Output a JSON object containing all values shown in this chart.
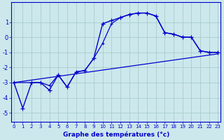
{
  "bg_color": "#cce8ec",
  "line_color": "#0000cc",
  "grid_color": "#aacccc",
  "xlim": [
    -0.3,
    23.3
  ],
  "ylim": [
    -5.6,
    2.3
  ],
  "xticks": [
    0,
    1,
    2,
    3,
    4,
    5,
    6,
    7,
    8,
    9,
    10,
    11,
    12,
    13,
    14,
    15,
    16,
    17,
    18,
    19,
    20,
    21,
    22,
    23
  ],
  "yticks": [
    -5,
    -4,
    -3,
    -2,
    -1,
    0,
    1
  ],
  "xlabel": "Graphe des températures (°c)",
  "series_main_x": [
    0,
    1,
    2,
    3,
    4,
    5,
    6,
    7,
    8,
    9,
    10,
    11,
    12,
    13,
    14,
    15,
    16,
    17,
    18,
    19,
    20,
    21,
    22,
    23
  ],
  "series_main_y": [
    -3.0,
    -4.7,
    -3.0,
    -3.0,
    -3.5,
    -2.5,
    -3.3,
    -2.3,
    -2.2,
    -1.4,
    0.9,
    1.1,
    1.3,
    1.5,
    1.6,
    1.6,
    1.4,
    0.3,
    0.2,
    0.0,
    0.0,
    -0.9,
    -1.0,
    -1.0
  ],
  "series_trend_x": [
    0,
    23
  ],
  "series_trend_y": [
    -3.0,
    -1.1
  ],
  "series_curve2_x": [
    0,
    2,
    3,
    4,
    5,
    6,
    7,
    8,
    9,
    10,
    11,
    12,
    13,
    14,
    15,
    16,
    17,
    18,
    19,
    20,
    21,
    22,
    23
  ],
  "series_curve2_y": [
    -3.0,
    -3.0,
    -3.0,
    -3.2,
    -2.5,
    -3.3,
    -2.3,
    -2.2,
    -1.4,
    -0.4,
    0.9,
    1.3,
    1.5,
    1.6,
    1.6,
    1.4,
    0.3,
    0.2,
    0.0,
    0.0,
    -0.9,
    -1.0,
    -1.0
  ]
}
